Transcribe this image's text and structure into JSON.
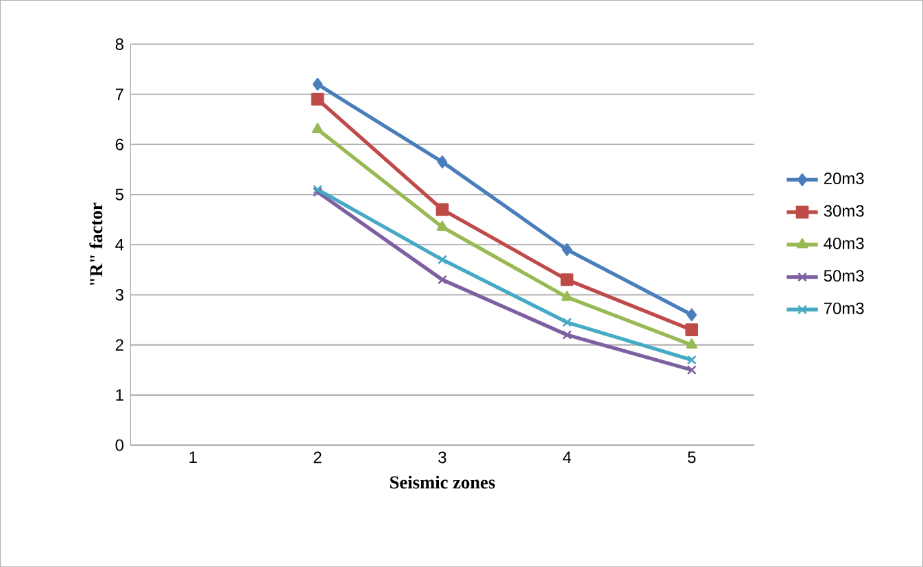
{
  "chart_data": {
    "type": "line",
    "xlabel": "Seismic zones",
    "ylabel": "\"R\" factor",
    "categories": [
      "1",
      "2",
      "3",
      "4",
      "5"
    ],
    "series": [
      {
        "name": "20m3",
        "color": "#4a7ebb",
        "marker": "diamond",
        "values": [
          null,
          7.2,
          5.65,
          3.9,
          2.6
        ]
      },
      {
        "name": "30m3",
        "color": "#be4b48",
        "marker": "square",
        "values": [
          null,
          6.9,
          4.7,
          3.3,
          2.3
        ]
      },
      {
        "name": "40m3",
        "color": "#98b954",
        "marker": "triangle",
        "values": [
          null,
          6.3,
          4.35,
          2.95,
          2.0
        ]
      },
      {
        "name": "50m3",
        "color": "#7d60a0",
        "marker": "cross",
        "values": [
          null,
          5.05,
          3.3,
          2.2,
          1.5
        ]
      },
      {
        "name": "70m3",
        "color": "#46aac5",
        "marker": "cross",
        "values": [
          null,
          5.1,
          3.7,
          2.45,
          1.7
        ]
      }
    ],
    "ylim": [
      0,
      8
    ],
    "yticks": [
      0,
      1,
      2,
      3,
      4,
      5,
      6,
      7,
      8
    ],
    "grid": "y",
    "legend": "right"
  }
}
